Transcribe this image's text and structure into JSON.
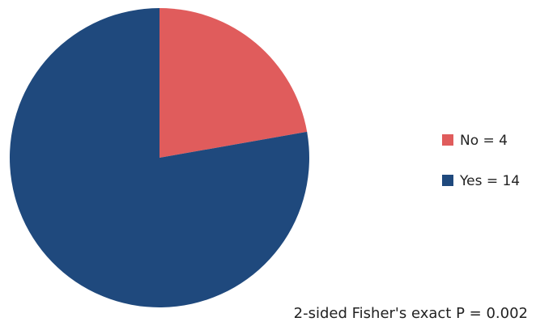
{
  "chart_data": {
    "type": "pie",
    "slices": [
      {
        "label": "No = 4",
        "value": 4,
        "color": "#e05c5c"
      },
      {
        "label": "Yes = 14",
        "value": 14,
        "color": "#1f497d"
      }
    ],
    "legend_position": "right",
    "annotation": "2-sided Fisher's exact P = 0.002",
    "start": "12 o'clock",
    "direction": "clockwise"
  }
}
